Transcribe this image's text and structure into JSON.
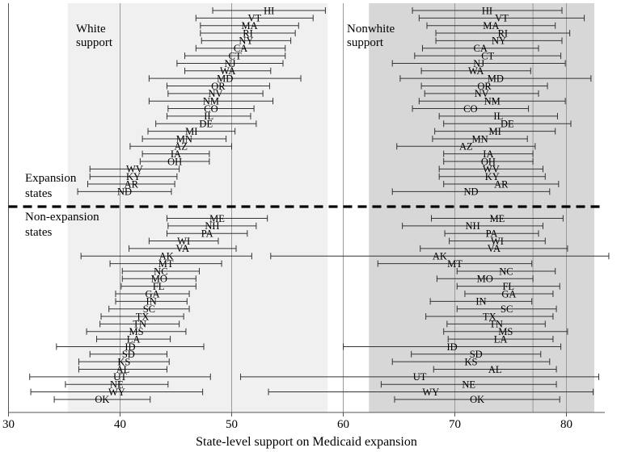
{
  "chart_data": {
    "type": "errorbar",
    "xlabel": "State-level support on Medicaid expansion",
    "xticks": [
      30,
      40,
      50,
      60,
      70,
      80
    ],
    "xlim": [
      30,
      84
    ],
    "grid": "vertical lines at 40, 50 (white panel) and 70, 77, 80 (nonwhite panel)",
    "panels": [
      {
        "name": "White support",
        "shaded_range": [
          35.3,
          58.6
        ],
        "gridlines": [
          40,
          50
        ]
      },
      {
        "name": "Nonwhite support",
        "shaded_range": [
          62.3,
          82.5
        ],
        "gridlines": [
          70,
          77,
          80
        ]
      }
    ],
    "panel_titles": {
      "white": "White\nsupport",
      "nonwhite": "Nonwhite\nsupport"
    },
    "groups": {
      "expansion": "Expansion\nstates",
      "non_expansion": "Non-expansion\nstates"
    },
    "expansion_states": [
      {
        "state": "HI",
        "white": [
          48.3,
          58.4
        ],
        "nonwhite": [
          66.2,
          79.6
        ]
      },
      {
        "state": "VT",
        "white": [
          46.8,
          57.3
        ],
        "nonwhite": [
          66.8,
          81.6
        ]
      },
      {
        "state": "MA",
        "white": [
          47.2,
          56.0
        ],
        "nonwhite": [
          67.5,
          79.0
        ]
      },
      {
        "state": "RI",
        "white": [
          47.2,
          55.7
        ],
        "nonwhite": [
          68.3,
          80.3
        ]
      },
      {
        "state": "NY",
        "white": [
          47.3,
          55.3
        ],
        "nonwhite": [
          68.3,
          79.6
        ]
      },
      {
        "state": "CA",
        "white": [
          46.8,
          54.8
        ],
        "nonwhite": [
          67.1,
          77.5
        ]
      },
      {
        "state": "CT",
        "white": [
          45.8,
          54.8
        ],
        "nonwhite": [
          66.4,
          79.5
        ]
      },
      {
        "state": "NJ",
        "white": [
          45.1,
          54.6
        ],
        "nonwhite": [
          64.4,
          79.9
        ]
      },
      {
        "state": "WA",
        "white": [
          45.8,
          53.5
        ],
        "nonwhite": [
          67.0,
          76.8
        ]
      },
      {
        "state": "MD",
        "white": [
          42.6,
          56.2
        ],
        "nonwhite": [
          65.1,
          82.2
        ]
      },
      {
        "state": "OR",
        "white": [
          44.2,
          53.4
        ],
        "nonwhite": [
          67.0,
          78.3
        ]
      },
      {
        "state": "NV",
        "white": [
          44.3,
          52.8
        ],
        "nonwhite": [
          67.3,
          77.5
        ]
      },
      {
        "state": "NM",
        "white": [
          42.6,
          53.7
        ],
        "nonwhite": [
          66.8,
          79.9
        ]
      },
      {
        "state": "CO",
        "white": [
          44.3,
          52.0
        ],
        "nonwhite": [
          66.2,
          76.6
        ]
      },
      {
        "state": "IL",
        "white": [
          44.2,
          51.7
        ],
        "nonwhite": [
          68.6,
          79.2
        ]
      },
      {
        "state": "DE",
        "white": [
          43.2,
          52.2
        ],
        "nonwhite": [
          69.0,
          80.4
        ]
      },
      {
        "state": "MI",
        "white": [
          42.5,
          50.3
        ],
        "nonwhite": [
          68.2,
          79.0
        ]
      },
      {
        "state": "MN",
        "white": [
          42.0,
          49.5
        ],
        "nonwhite": [
          68.0,
          76.5
        ]
      },
      {
        "state": "AZ",
        "white": [
          40.9,
          50.0
        ],
        "nonwhite": [
          64.8,
          77.2
        ]
      },
      {
        "state": "IA",
        "white": [
          42.0,
          48.0
        ],
        "nonwhite": [
          69.0,
          77.0
        ]
      },
      {
        "state": "OH",
        "white": [
          41.8,
          48.0
        ],
        "nonwhite": [
          69.0,
          77.0
        ]
      },
      {
        "state": "WV",
        "white": [
          37.3,
          45.3
        ],
        "nonwhite": [
          68.6,
          77.9
        ]
      },
      {
        "state": "KY",
        "white": [
          37.3,
          45.1
        ],
        "nonwhite": [
          68.6,
          78.1
        ]
      },
      {
        "state": "AR",
        "white": [
          37.1,
          44.9
        ],
        "nonwhite": [
          69.0,
          79.3
        ]
      },
      {
        "state": "ND",
        "white": [
          36.2,
          44.6
        ],
        "nonwhite": [
          64.4,
          78.5
        ]
      }
    ],
    "non_expansion_states": [
      {
        "state": "ME",
        "white": [
          44.2,
          53.2
        ],
        "nonwhite": [
          67.9,
          79.7
        ]
      },
      {
        "state": "NH",
        "white": [
          44.3,
          52.2
        ],
        "nonwhite": [
          65.3,
          77.9
        ]
      },
      {
        "state": "PA",
        "white": [
          44.2,
          51.4
        ],
        "nonwhite": [
          69.1,
          77.5
        ]
      },
      {
        "state": "WI",
        "white": [
          42.6,
          48.8
        ],
        "nonwhite": [
          69.5,
          78.1
        ]
      },
      {
        "state": "VA",
        "white": [
          40.8,
          50.4
        ],
        "nonwhite": [
          66.9,
          80.1
        ]
      },
      {
        "state": "AK",
        "white": [
          36.5,
          51.8
        ],
        "nonwhite": [
          53.5,
          83.8
        ]
      },
      {
        "state": "MT",
        "white": [
          39.1,
          49.1
        ],
        "nonwhite": [
          63.1,
          76.9
        ]
      },
      {
        "state": "NC",
        "white": [
          40.2,
          47.1
        ],
        "nonwhite": [
          70.2,
          79.0
        ]
      },
      {
        "state": "MO",
        "white": [
          40.2,
          46.8
        ],
        "nonwhite": [
          68.4,
          77.0
        ]
      },
      {
        "state": "FL",
        "white": [
          40.1,
          46.8
        ],
        "nonwhite": [
          70.2,
          79.4
        ]
      },
      {
        "state": "GA",
        "white": [
          39.6,
          46.2
        ],
        "nonwhite": [
          70.9,
          78.8
        ]
      },
      {
        "state": "IN",
        "white": [
          39.6,
          46.0
        ],
        "nonwhite": [
          67.8,
          76.9
        ]
      },
      {
        "state": "SC",
        "white": [
          39.0,
          46.2
        ],
        "nonwhite": [
          70.2,
          79.1
        ]
      },
      {
        "state": "TX",
        "white": [
          38.3,
          45.7
        ],
        "nonwhite": [
          67.4,
          78.8
        ]
      },
      {
        "state": "TN",
        "white": [
          38.2,
          45.3
        ],
        "nonwhite": [
          69.3,
          78.1
        ]
      },
      {
        "state": "MS",
        "white": [
          37.0,
          45.9
        ],
        "nonwhite": [
          69.0,
          80.1
        ]
      },
      {
        "state": "LA",
        "white": [
          37.9,
          44.5
        ],
        "nonwhite": [
          69.4,
          78.8
        ]
      },
      {
        "state": "ID",
        "white": [
          34.3,
          47.5
        ],
        "nonwhite": [
          60.0,
          79.5
        ]
      },
      {
        "state": "SD",
        "white": [
          37.3,
          44.2
        ],
        "nonwhite": [
          66.1,
          77.7
        ]
      },
      {
        "state": "KS",
        "white": [
          36.3,
          44.4
        ],
        "nonwhite": [
          64.4,
          78.5
        ]
      },
      {
        "state": "AL",
        "white": [
          36.3,
          44.2
        ],
        "nonwhite": [
          68.1,
          79.1
        ]
      },
      {
        "state": "UT",
        "white": [
          31.9,
          48.1
        ],
        "nonwhite": [
          50.8,
          82.9
        ]
      },
      {
        "state": "NE",
        "white": [
          35.1,
          44.3
        ],
        "nonwhite": [
          63.4,
          79.1
        ]
      },
      {
        "state": "WY",
        "white": [
          32.0,
          47.4
        ],
        "nonwhite": [
          53.3,
          82.4
        ]
      },
      {
        "state": "OK",
        "white": [
          34.1,
          42.7
        ],
        "nonwhite": [
          64.6,
          79.4
        ]
      }
    ]
  }
}
